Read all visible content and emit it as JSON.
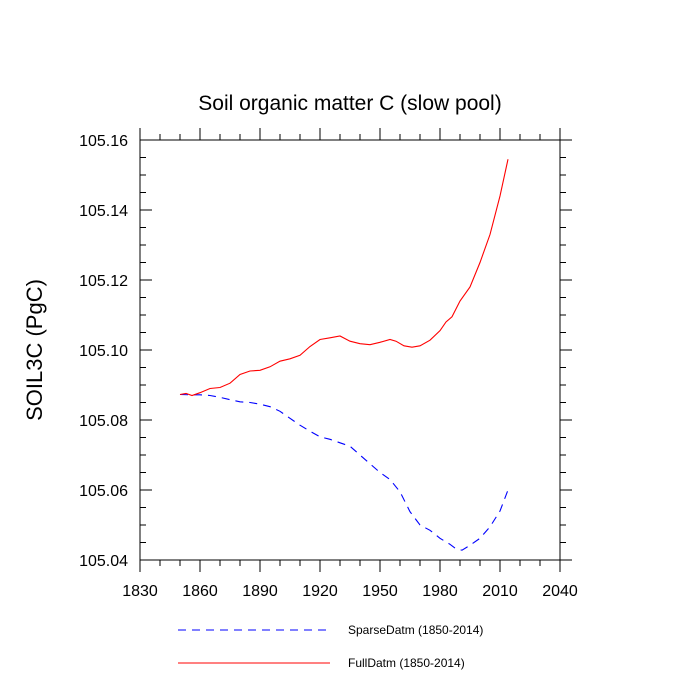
{
  "chart_data": {
    "type": "line",
    "title": "Soil organic matter C (slow pool)",
    "ylabel": "SOIL3C  (PgC)",
    "xlabel": "",
    "xlim": [
      1830,
      2040
    ],
    "ylim": [
      105.04,
      105.16
    ],
    "x_ticks": [
      1830,
      1860,
      1890,
      1920,
      1950,
      1980,
      2010,
      2040
    ],
    "x_tick_labels": [
      "1830",
      "1860",
      "1890",
      "1920",
      "1950",
      "1980",
      "2010",
      "2040"
    ],
    "y_ticks": [
      105.04,
      105.06,
      105.08,
      105.1,
      105.12,
      105.14,
      105.16
    ],
    "y_tick_labels": [
      "105.04",
      "105.06",
      "105.08",
      "105.10",
      "105.12",
      "105.14",
      "105.16"
    ],
    "legend_position": "bottom",
    "series": [
      {
        "name": "SparseDatm (1850-2014)",
        "color": "#0000ff",
        "style": "dashed",
        "x": [
          1850,
          1855,
          1860,
          1865,
          1870,
          1875,
          1880,
          1885,
          1890,
          1895,
          1900,
          1905,
          1910,
          1915,
          1920,
          1925,
          1930,
          1935,
          1940,
          1945,
          1950,
          1955,
          1960,
          1965,
          1970,
          1975,
          1980,
          1985,
          1988,
          1991,
          1995,
          2000,
          2005,
          2010,
          2014
        ],
        "y": [
          105.0873,
          105.0872,
          105.0872,
          105.087,
          105.0865,
          105.0858,
          105.0852,
          105.085,
          105.0845,
          105.0838,
          105.0825,
          105.0805,
          105.0785,
          105.0768,
          105.0752,
          105.0745,
          105.0735,
          105.0725,
          105.07,
          105.0675,
          105.065,
          105.063,
          105.0595,
          105.0538,
          105.05,
          105.0485,
          105.0462,
          105.0445,
          105.0432,
          105.0428,
          105.0442,
          105.0462,
          105.0495,
          105.054,
          105.06
        ]
      },
      {
        "name": "FullDatm (1850-2014)",
        "color": "#ff0000",
        "style": "solid",
        "x": [
          1850,
          1853,
          1856,
          1860,
          1865,
          1870,
          1875,
          1880,
          1885,
          1890,
          1895,
          1900,
          1905,
          1910,
          1915,
          1920,
          1925,
          1930,
          1935,
          1940,
          1945,
          1950,
          1955,
          1958,
          1962,
          1966,
          1970,
          1975,
          1980,
          1983,
          1986,
          1990,
          1995,
          2000,
          2005,
          2010,
          2014
        ],
        "y": [
          105.0873,
          105.0876,
          105.087,
          105.0878,
          105.089,
          105.0893,
          105.0905,
          105.093,
          105.094,
          105.0942,
          105.0952,
          105.0968,
          105.0975,
          105.0985,
          105.101,
          105.103,
          105.1035,
          105.104,
          105.1025,
          105.1018,
          105.1015,
          105.1022,
          105.103,
          105.1025,
          105.1012,
          105.1008,
          105.1012,
          105.1028,
          105.1055,
          105.108,
          105.1095,
          105.114,
          105.118,
          105.125,
          105.133,
          105.144,
          105.1545
        ]
      }
    ]
  }
}
